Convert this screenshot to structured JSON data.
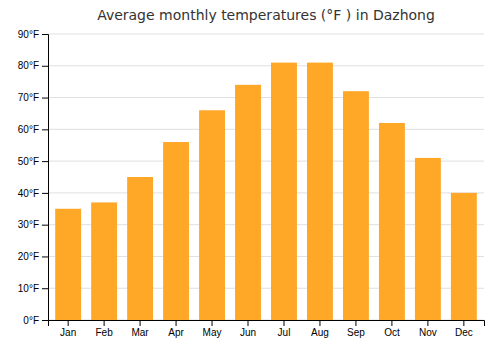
{
  "chart_data": {
    "type": "bar",
    "title": "Average monthly temperatures (°F ) in Dazhong",
    "categories": [
      "Jan",
      "Feb",
      "Mar",
      "Apr",
      "May",
      "Jun",
      "Jul",
      "Aug",
      "Sep",
      "Oct",
      "Nov",
      "Dec"
    ],
    "values": [
      35,
      37,
      45,
      56,
      66,
      74,
      81,
      81,
      72,
      62,
      51,
      40
    ],
    "color": "#FFA726",
    "ylim": [
      0,
      90
    ],
    "yticks": [
      {
        "value": 0,
        "label": "0°F"
      },
      {
        "value": 10,
        "label": "10°F"
      },
      {
        "value": 20,
        "label": "20°F"
      },
      {
        "value": 30,
        "label": "30°F"
      },
      {
        "value": 40,
        "label": "40°F"
      },
      {
        "value": 50,
        "label": "50°F"
      },
      {
        "value": 60,
        "label": "60°F"
      },
      {
        "value": 70,
        "label": "70°F"
      },
      {
        "value": 80,
        "label": "80°F"
      },
      {
        "value": 90,
        "label": "90°F"
      }
    ],
    "grid": true
  }
}
